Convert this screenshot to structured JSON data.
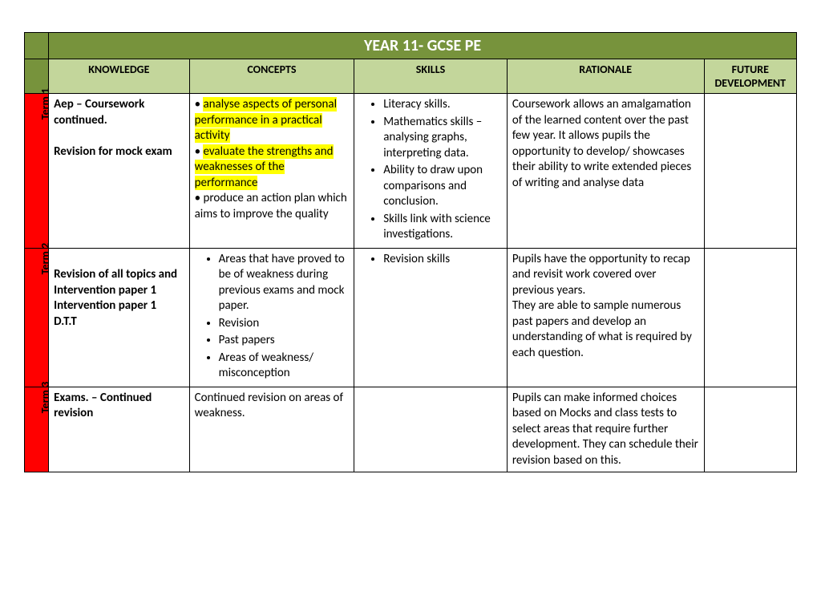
{
  "title": "YEAR 11- GCSE PE",
  "headers": {
    "knowledge": "KNOWLEDGE",
    "concepts": "CONCEPTS",
    "skills": "SKILLS",
    "rationale": "RATIONALE",
    "future": "FUTURE DEVELOPMENT"
  },
  "terms": {
    "t1": {
      "label": "Term 1",
      "knowledge_line1": "Aep – Coursework continued.",
      "knowledge_line2": "Revision for mock exam",
      "concepts_b1_prefix": "• ",
      "concepts_b1_hl": "analyse aspects of personal performance in a practical activity",
      "concepts_b2_prefix": "• ",
      "concepts_b2_hl": "evaluate the strengths and weaknesses of the performance",
      "concepts_b3": " • produce an action plan which aims to improve the quality",
      "skills_b1": "Literacy skills.",
      "skills_b2": "Mathematics skills – analysing graphs, interpreting data.",
      "skills_b3": "Ability to draw upon comparisons and conclusion.",
      "skills_b4": "Skills link with science investigations.",
      "rationale": "Coursework allows an amalgamation of the learned content over the past few year. It allows pupils the opportunity to develop/ showcases their ability to write extended pieces of writing and analyse data"
    },
    "t2": {
      "label": "Term 2",
      "knowledge": "Revision of all topics and Intervention paper 1\nIntervention paper 1\nD.T.T",
      "concepts_b1": "Areas that have proved to be of weakness during previous exams and mock paper.",
      "concepts_b2": "Revision",
      "concepts_b3": "Past papers",
      "concepts_b4": "Areas of weakness/ misconception",
      "skills_b1": "Revision skills",
      "rationale": "Pupils have the opportunity to recap and revisit work covered over previous years.\nThey are able to sample numerous past papers and develop an understanding of what is required by each question."
    },
    "t3": {
      "label": "Term 3",
      "knowledge": "Exams. – Continued revision",
      "concepts": "Continued revision on areas of weakness.",
      "rationale": "Pupils can make informed choices based on Mocks and class tests to select areas that require further development. They can schedule their revision based on this."
    }
  }
}
